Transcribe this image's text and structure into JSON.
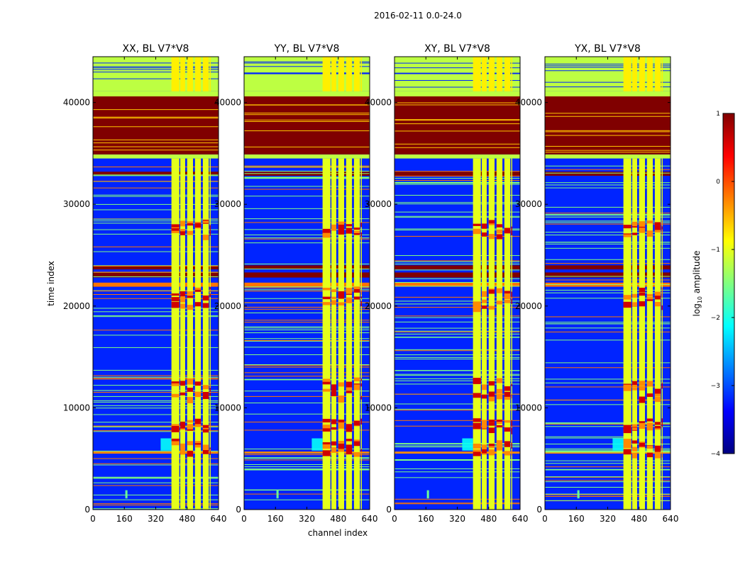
{
  "figure": {
    "suptitle": "2016-02-11 0.0-24.0",
    "colorbar": {
      "label": "log10 amplitude",
      "label_prefix": "log",
      "label_sub": "10",
      "label_suffix": " amplitude",
      "range": [
        -4,
        1
      ],
      "ticks": [
        1,
        0,
        -1,
        -2,
        -3,
        -4
      ],
      "tick_labels": [
        "1",
        "0",
        "−1",
        "−2",
        "−3",
        "−4"
      ],
      "stops": [
        "#000080",
        "#0000ff",
        "#0080ff",
        "#00ffff",
        "#80ff80",
        "#ffff00",
        "#ff8000",
        "#ff0000",
        "#800000"
      ]
    }
  },
  "chart_data": {
    "type": "heatmap",
    "xlabel": "channel index",
    "ylabel": "time index",
    "xlim": [
      0,
      640
    ],
    "ylim": [
      0,
      44500
    ],
    "xticks": [
      0,
      160,
      320,
      480,
      640
    ],
    "yticks": [
      0,
      10000,
      20000,
      30000,
      40000
    ],
    "colormap": "jet",
    "value_label": "log10 amplitude",
    "value_range": [
      -4,
      1
    ],
    "panels": [
      {
        "title": "XX, BL V7*V8",
        "pol": "XX"
      },
      {
        "title": "YY, BL V7*V8",
        "pol": "YY"
      },
      {
        "title": "XY, BL V7*V8",
        "pol": "XY"
      },
      {
        "title": "YX, BL V7*V8",
        "pol": "YX"
      }
    ],
    "bands": [
      {
        "t": [
          0,
          34500
        ],
        "value": -3.2,
        "desc": "background noise"
      },
      {
        "t": [
          34500,
          34900
        ],
        "value": -1.2
      },
      {
        "t": [
          34900,
          40600
        ],
        "value": 1.0,
        "desc": "saturated block"
      },
      {
        "t": [
          40600,
          41100
        ],
        "value": -1.2
      },
      {
        "t": [
          41100,
          44500
        ],
        "value": -1.2
      },
      {
        "t": [
          32800,
          33200
        ],
        "value": 1.0
      },
      {
        "t": [
          23600,
          24000
        ],
        "value": 1.0
      },
      {
        "t": [
          22800,
          23300
        ],
        "value": 1.0
      },
      {
        "t": [
          21900,
          22300
        ],
        "value": -0.2
      },
      {
        "t": [
          5500,
          5700
        ],
        "value": -0.3
      }
    ],
    "rfi_channels": [
      [
        400,
        440
      ],
      [
        445,
        470
      ],
      [
        480,
        510
      ],
      [
        520,
        550
      ],
      [
        560,
        590
      ],
      [
        595,
        600
      ]
    ],
    "rfi_value": -1.0,
    "rfi_bursts": [
      [
        5600,
        7000
      ],
      [
        8000,
        9000
      ],
      [
        11000,
        13000
      ],
      [
        20000,
        22000
      ],
      [
        27000,
        28500
      ]
    ]
  }
}
